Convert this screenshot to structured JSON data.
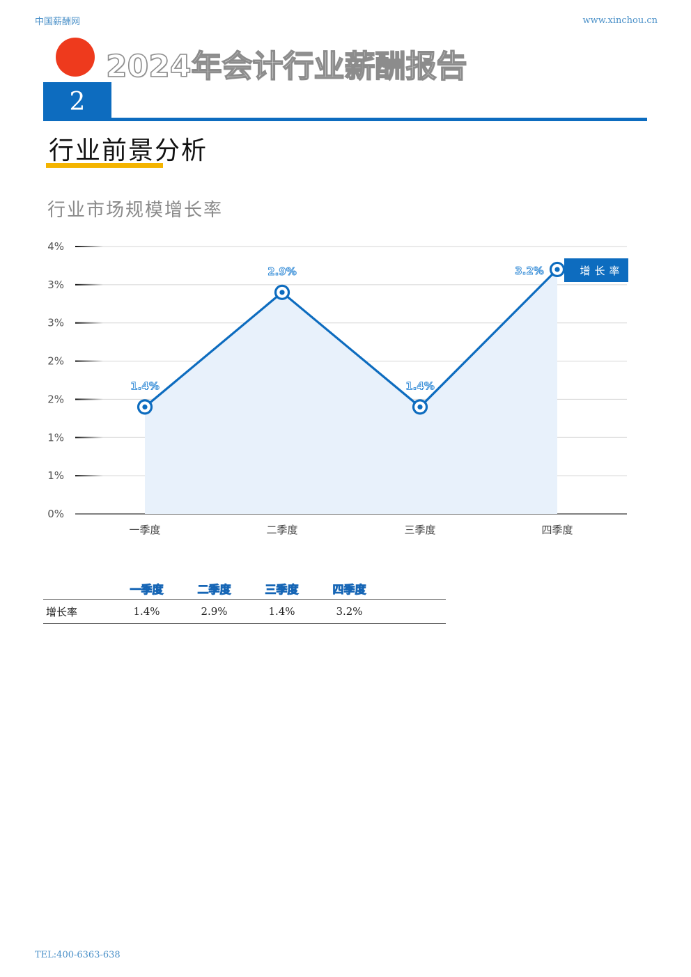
{
  "header": {
    "site_name": "中国薪酬网",
    "site_url": "www.xinchou.cn",
    "report_title": "2024年会计行业薪酬报告",
    "chapter_number": "2"
  },
  "section": {
    "title": "行业前景分析"
  },
  "chart_data": {
    "type": "line",
    "title": "行业市场规模增长率",
    "categories": [
      "一季度",
      "二季度",
      "三季度",
      "四季度"
    ],
    "series": [
      {
        "name": "增长率",
        "values": [
          1.4,
          2.9,
          1.4,
          3.2
        ],
        "labels": [
          "1.4%",
          "2.9%",
          "1.4%",
          "3.2%"
        ]
      }
    ],
    "ylim": [
      0,
      3.5
    ],
    "yticks": [
      0,
      0.5,
      1.0,
      1.5,
      2.0,
      2.5,
      3.0,
      3.5
    ],
    "ytick_labels": [
      "0%",
      "1%",
      "1%",
      "2%",
      "2%",
      "3%",
      "3%",
      "4%"
    ],
    "grid": true,
    "area_fill": true,
    "legend": "top-right",
    "colors": {
      "line": "#0d6cbf",
      "area": "#e8f1fb",
      "label": "#3a8fd8"
    }
  },
  "table": {
    "headers": [
      "一季度",
      "二季度",
      "三季度",
      "四季度"
    ],
    "row_label": "增长率",
    "values": [
      "1.4%",
      "2.9%",
      "1.4%",
      "3.2%"
    ]
  },
  "footer": {
    "tel": "TEL:400-6363-638"
  }
}
